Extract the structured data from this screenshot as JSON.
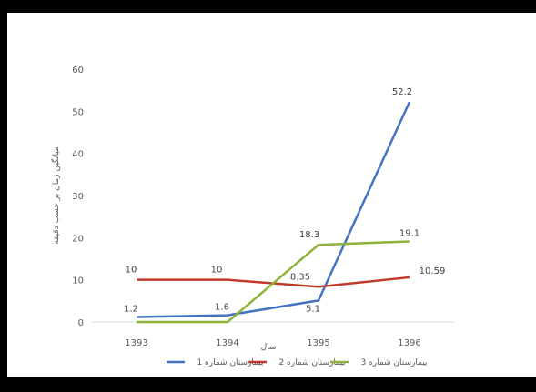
{
  "chart_data": {
    "type": "line",
    "title": "",
    "xlabel": "سال",
    "ylabel": "میانگین زمان بر حسب دقیقه",
    "categories": [
      "1393",
      "1394",
      "1395",
      "1396"
    ],
    "ylim": [
      0,
      60
    ],
    "yticks": [
      "0",
      "10",
      "20",
      "30",
      "40",
      "50",
      "60"
    ],
    "grid": false,
    "legend_position": "bottom",
    "series": [
      {
        "name": "بیمارستان شماره 1",
        "values": [
          1.2,
          1.6,
          5.1,
          52.2
        ],
        "labels": [
          "1.2",
          "1.6",
          "5.1",
          "52.2"
        ],
        "color": "#4472C4"
      },
      {
        "name": "بیمارستان شماره 2",
        "values": [
          10,
          10,
          8.35,
          10.59
        ],
        "labels": [
          "10",
          "10",
          "8.35",
          "10.59"
        ],
        "color": "#C0392B"
      },
      {
        "name": "بیمارستان شماره 3",
        "values": [
          0,
          0,
          18.3,
          19.1
        ],
        "labels": [
          "",
          "",
          "18.3",
          "19.1"
        ],
        "color": "#8DB33A"
      }
    ]
  }
}
